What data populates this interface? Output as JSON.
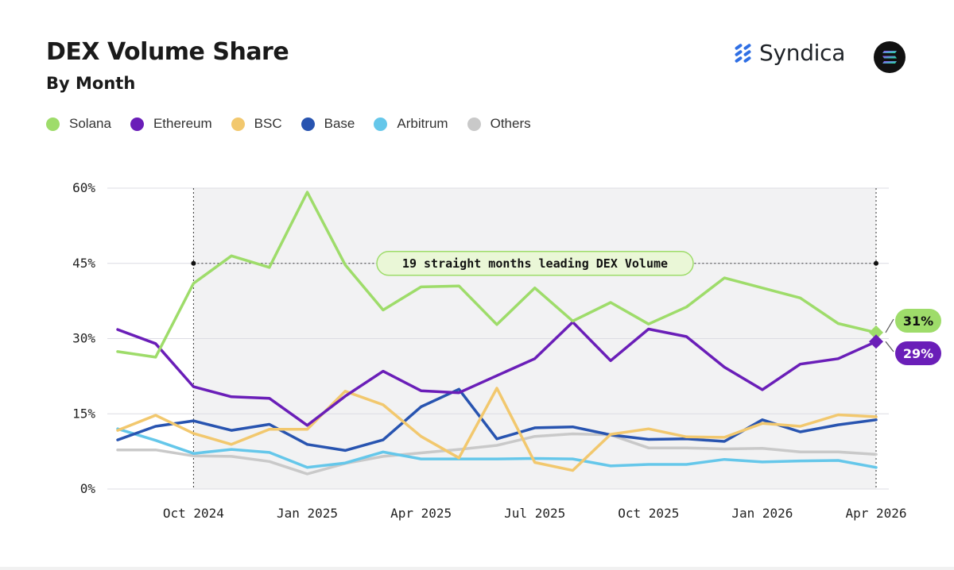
{
  "header": {
    "title": "DEX Volume Share",
    "subtitle": "By Month",
    "brand": "Syndica",
    "brand_icon": "syndica-logo-icon",
    "badge_icon": "solana-logo-icon"
  },
  "chart_data": {
    "type": "line",
    "title": "DEX Volume Share",
    "subtitle": "By Month",
    "xlabel": "",
    "ylabel": "",
    "ylim": [
      0,
      60
    ],
    "y_ticks": [
      {
        "value": 0,
        "label": "0%"
      },
      {
        "value": 15,
        "label": "15%"
      },
      {
        "value": 30,
        "label": "30%"
      },
      {
        "value": 45,
        "label": "45%"
      },
      {
        "value": 60,
        "label": "60%"
      }
    ],
    "x": [
      "2024-08",
      "2024-09",
      "2024-10",
      "2024-11",
      "2024-12",
      "2025-01",
      "2025-02",
      "2025-03",
      "2025-04",
      "2025-05",
      "2025-06",
      "2025-07",
      "2025-08",
      "2025-09",
      "2025-10",
      "2025-11",
      "2025-12",
      "2026-01",
      "2026-02",
      "2026-03",
      "2026-04"
    ],
    "x_ticks": [
      {
        "index": 2,
        "label": "Oct 2024"
      },
      {
        "index": 5,
        "label": "Jan 2025"
      },
      {
        "index": 8,
        "label": "Apr 2025"
      },
      {
        "index": 11,
        "label": "Jul 2025"
      },
      {
        "index": 14,
        "label": "Oct 2025"
      },
      {
        "index": 17,
        "label": "Jan 2026"
      },
      {
        "index": 20,
        "label": "Apr 2026"
      }
    ],
    "grid": true,
    "legend_position": "top-left",
    "series": [
      {
        "name": "Solana",
        "color": "#9edc6a",
        "values": [
          27.4,
          26.3,
          41,
          46.5,
          44.2,
          59.2,
          44.7,
          35.7,
          40.3,
          40.5,
          32.8,
          40.1,
          33.5,
          37.2,
          32.9,
          36.3,
          42.1,
          40.1,
          38.1,
          33,
          31.2
        ]
      },
      {
        "name": "Ethereum",
        "color": "#6a1eb8",
        "values": [
          31.8,
          29,
          20.4,
          18.4,
          18.1,
          12.7,
          18.5,
          23.5,
          19.6,
          19.2,
          22.6,
          26,
          33.3,
          25.6,
          31.9,
          30.4,
          24.3,
          19.8,
          24.9,
          26,
          29.4
        ]
      },
      {
        "name": "BSC",
        "color": "#f2c86e",
        "values": [
          11.7,
          14.7,
          11.1,
          8.9,
          11.9,
          11.9,
          19.5,
          16.8,
          10.5,
          6.2,
          20.1,
          5.3,
          3.7,
          10.9,
          12,
          10.4,
          10.3,
          13.1,
          12.5,
          14.8,
          14.4
        ]
      },
      {
        "name": "Base",
        "color": "#2854b0",
        "values": [
          9.8,
          12.5,
          13.6,
          11.7,
          12.9,
          8.9,
          7.7,
          9.8,
          16.4,
          19.9,
          10,
          12.2,
          12.4,
          10.8,
          9.9,
          10,
          9.5,
          13.8,
          11.4,
          12.8,
          13.8
        ]
      },
      {
        "name": "Arbitrum",
        "color": "#65c7ea",
        "values": [
          12,
          9.7,
          7.1,
          7.9,
          7.3,
          4.3,
          5.2,
          7.4,
          6,
          6,
          6,
          6.1,
          6,
          4.6,
          4.9,
          4.9,
          5.9,
          5.4,
          5.6,
          5.7,
          4.3
        ]
      },
      {
        "name": "Others",
        "color": "#c9c9c9",
        "values": [
          7.8,
          7.8,
          6.6,
          6.5,
          5.5,
          3,
          5.1,
          6.5,
          7.2,
          7.9,
          8.7,
          10.5,
          11,
          10.8,
          8.2,
          8.2,
          8,
          8.1,
          7.4,
          7.4,
          6.9
        ]
      }
    ],
    "end_labels": [
      {
        "series": "Solana",
        "label": "31%",
        "color": "#9edc6a",
        "text_color": "#111111"
      },
      {
        "series": "Ethereum",
        "label": "29%",
        "color": "#6a1eb8",
        "text_color": "#ffffff"
      }
    ],
    "annotation": {
      "text": "19 straight months leading DEX Volume",
      "start_index": 2,
      "end_index": 20,
      "value": 45,
      "fill": "#eaf7d7",
      "border": "#9edc6a"
    },
    "shaded_region": {
      "start_index": 2,
      "end_index": 20,
      "color": "#f2f2f3"
    }
  }
}
